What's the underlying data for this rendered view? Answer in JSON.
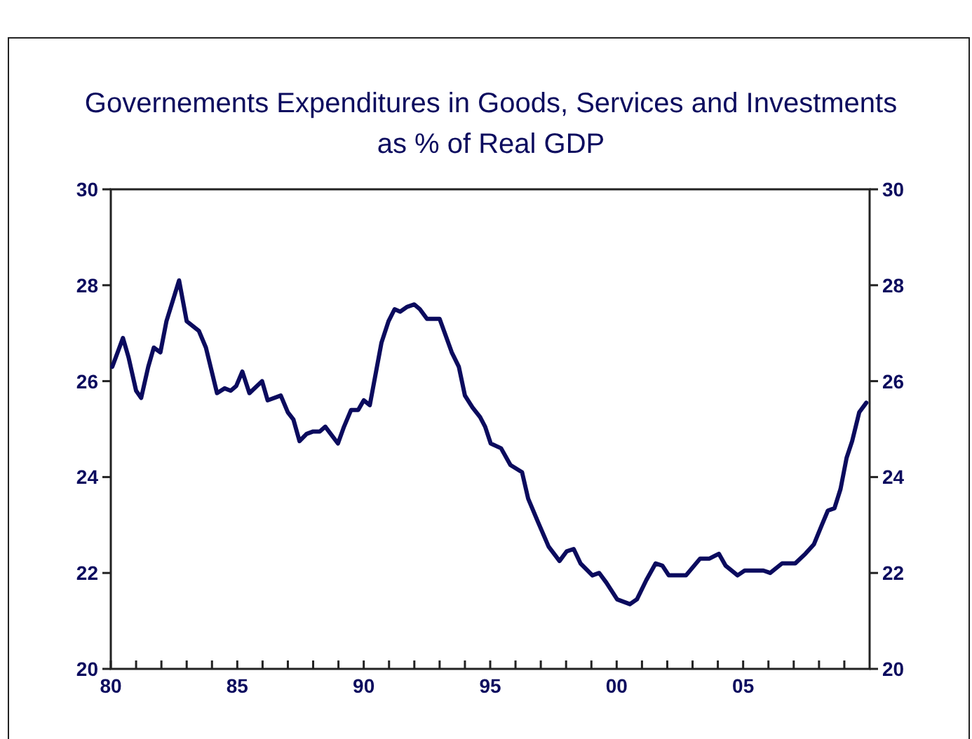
{
  "chart_data": {
    "type": "line",
    "title": "Governements Expenditures in Goods, Services and Investments\nas % of Real GDP",
    "x": [
      1980.06,
      1980.48,
      1980.7,
      1981.0,
      1981.2,
      1981.48,
      1981.7,
      1981.96,
      1982.2,
      1982.7,
      1983.0,
      1983.48,
      1983.76,
      1984.2,
      1984.5,
      1984.74,
      1984.96,
      1985.2,
      1985.48,
      1985.98,
      1986.2,
      1986.72,
      1987.0,
      1987.22,
      1987.46,
      1987.74,
      1988.0,
      1988.26,
      1988.48,
      1988.98,
      1989.22,
      1989.5,
      1989.78,
      1990.0,
      1990.24,
      1990.7,
      1990.98,
      1991.22,
      1991.44,
      1991.72,
      1992.0,
      1992.22,
      1992.5,
      1993.0,
      1993.48,
      1993.76,
      1994.0,
      1994.3,
      1994.6,
      1994.8,
      1995.02,
      1995.43,
      1995.8,
      1996.26,
      1996.5,
      1996.9,
      1997.31,
      1997.74,
      1998.02,
      1998.3,
      1998.57,
      1999.04,
      1999.31,
      1999.59,
      2000.02,
      2000.52,
      2000.8,
      2001.17,
      2001.54,
      2001.81,
      2002.06,
      2002.74,
      2003.3,
      2003.67,
      2004.04,
      2004.31,
      2004.78,
      2005.06,
      2005.33,
      2005.8,
      2006.07,
      2006.54,
      2007.06,
      2007.46,
      2007.8,
      2008.11,
      2008.35,
      2008.61,
      2008.85,
      2009.09,
      2009.31,
      2009.59,
      2009.87
    ],
    "series": [
      {
        "color": "#0b0b5e",
        "values": [
          26.3,
          26.9,
          26.5,
          25.8,
          25.65,
          26.3,
          26.7,
          26.6,
          27.25,
          28.1,
          27.25,
          27.05,
          26.7,
          25.75,
          25.85,
          25.8,
          25.9,
          26.2,
          25.75,
          26.0,
          25.6,
          25.7,
          25.35,
          25.2,
          24.75,
          24.9,
          24.95,
          24.95,
          25.05,
          24.7,
          25.05,
          25.4,
          25.4,
          25.6,
          25.5,
          26.8,
          27.25,
          27.5,
          27.45,
          27.55,
          27.6,
          27.5,
          27.3,
          27.3,
          26.6,
          26.3,
          25.7,
          25.45,
          25.25,
          25.05,
          24.7,
          24.6,
          24.25,
          24.1,
          23.55,
          23.05,
          22.55,
          22.25,
          22.45,
          22.5,
          22.2,
          21.95,
          22.0,
          21.8,
          21.45,
          21.35,
          21.45,
          21.85,
          22.2,
          22.15,
          21.95,
          21.95,
          22.3,
          22.3,
          22.4,
          22.15,
          21.95,
          22.05,
          22.05,
          22.05,
          22.0,
          22.2,
          22.2,
          22.4,
          22.6,
          23.0,
          23.3,
          23.35,
          23.75,
          24.4,
          24.75,
          25.35,
          25.55
        ]
      }
    ],
    "xlim": [
      1980,
      2010
    ],
    "xticks": [
      {
        "value": 1980,
        "label": "80"
      },
      {
        "value": 1981,
        "label": null
      },
      {
        "value": 1982,
        "label": null
      },
      {
        "value": 1983,
        "label": null
      },
      {
        "value": 1984,
        "label": null
      },
      {
        "value": 1985,
        "label": "85"
      },
      {
        "value": 1986,
        "label": null
      },
      {
        "value": 1987,
        "label": null
      },
      {
        "value": 1988,
        "label": null
      },
      {
        "value": 1989,
        "label": null
      },
      {
        "value": 1990,
        "label": "90"
      },
      {
        "value": 1991,
        "label": null
      },
      {
        "value": 1992,
        "label": null
      },
      {
        "value": 1993,
        "label": null
      },
      {
        "value": 1994,
        "label": null
      },
      {
        "value": 1995,
        "label": "95"
      },
      {
        "value": 1996,
        "label": null
      },
      {
        "value": 1997,
        "label": null
      },
      {
        "value": 1998,
        "label": null
      },
      {
        "value": 1999,
        "label": null
      },
      {
        "value": 2000,
        "label": "00"
      },
      {
        "value": 2001,
        "label": null
      },
      {
        "value": 2002,
        "label": null
      },
      {
        "value": 2003,
        "label": null
      },
      {
        "value": 2004,
        "label": null
      },
      {
        "value": 2005,
        "label": "05"
      },
      {
        "value": 2006,
        "label": null
      },
      {
        "value": 2007,
        "label": null
      },
      {
        "value": 2008,
        "label": null
      },
      {
        "value": 2009,
        "label": null
      }
    ],
    "ylim": [
      20,
      30
    ],
    "yticks": [
      20,
      22,
      24,
      26,
      28,
      30
    ],
    "y2lim": [
      20,
      30
    ],
    "y2ticks": [
      20,
      22,
      24,
      26,
      28,
      30
    ],
    "grid": false,
    "marker": "none",
    "line_style": "solid"
  }
}
